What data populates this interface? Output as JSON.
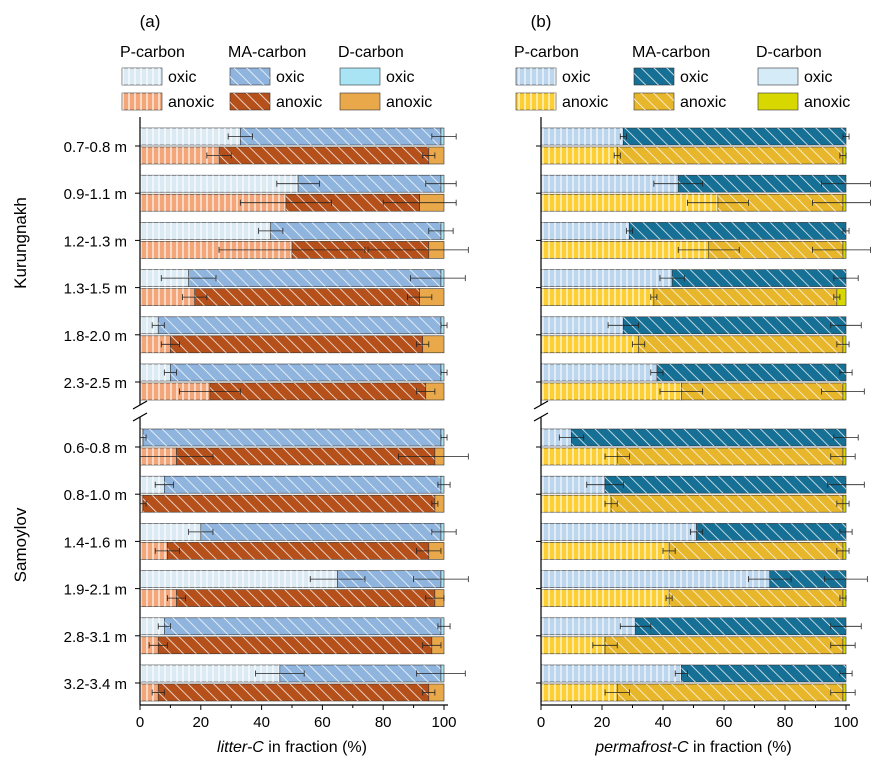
{
  "chart_data": {
    "type": "bar",
    "orientation": "horizontal",
    "stacked": true,
    "error_bars": true,
    "y_group_labels": [
      "Kurungnakh",
      "Samoylov"
    ],
    "categories": {
      "Kurungnakh": [
        "0.7-0.8 m",
        "0.9-1.1 m",
        "1.2-1.3 m",
        "1.3-1.5 m",
        "1.8-2.0 m",
        "2.3-2.5 m"
      ],
      "Samoylov": [
        "0.6-0.8 m",
        "0.8-1.0 m",
        "1.4-1.6 m",
        "1.9-2.1 m",
        "2.8-3.1 m",
        "3.2-3.4 m"
      ]
    },
    "xlim": [
      0,
      100
    ],
    "xticks": [
      0,
      20,
      40,
      60,
      80,
      100
    ],
    "legend_headers": [
      "P-carbon",
      "MA-carbon",
      "D-carbon"
    ],
    "legend_items": [
      "oxic",
      "anoxic"
    ],
    "panels": [
      {
        "label": "(a)",
        "xlabel": "litter-C",
        "xlabel_suffix": " in fraction (%)",
        "colors": {
          "P_oxic": "#dceaf3",
          "P_anoxic": "#f2a67a",
          "MA_oxic": "#8fb5de",
          "MA_anoxic": "#b5501a",
          "D_oxic": "#a8e4f4",
          "D_anoxic": "#e9a94a"
        },
        "series": {
          "Kurungnakh": {
            "oxic": {
              "P": [
                33,
                52,
                43,
                16,
                6,
                10
              ],
              "MA": [
                66,
                47,
                56,
                83,
                93,
                89
              ],
              "D": [
                1,
                1,
                1,
                1,
                1,
                1
              ],
              "err": [
                [
                  33,
                  4,
                  100,
                  4
                ],
                [
                  52,
                  7,
                  99,
                  5
                ],
                [
                  43,
                  4,
                  99,
                  4
                ],
                [
                  16,
                  9,
                  98,
                  9
                ],
                [
                  6,
                  2,
                  100,
                  1
                ],
                [
                  10,
                  2,
                  100,
                  1
                ]
              ]
            },
            "anoxic": {
              "P": [
                26,
                48,
                50,
                18,
                10,
                23
              ],
              "MA": [
                69,
                44,
                45,
                74,
                83,
                71
              ],
              "D": [
                5,
                8,
                5,
                8,
                7,
                6
              ],
              "err": [
                [
                  26,
                  4,
                  95,
                  2
                ],
                [
                  48,
                  15,
                  92,
                  12
                ],
                [
                  50,
                  24,
                  95,
                  20
                ],
                [
                  18,
                  4,
                  92,
                  4
                ],
                [
                  10,
                  3,
                  93,
                  2
                ],
                [
                  23,
                  10,
                  94,
                  3
                ]
              ]
            }
          },
          "Samoylov": {
            "oxic": {
              "P": [
                1,
                8,
                20,
                65,
                8,
                46
              ],
              "MA": [
                98,
                91,
                79,
                34,
                91,
                53
              ],
              "D": [
                1,
                1,
                1,
                1,
                1,
                1
              ],
              "err": [
                [
                  1,
                  1,
                  100,
                  1
                ],
                [
                  8,
                  3,
                  100,
                  2
                ],
                [
                  20,
                  4,
                  100,
                  4
                ],
                [
                  65,
                  9,
                  99,
                  9
                ],
                [
                  8,
                  2,
                  100,
                  2
                ],
                [
                  46,
                  8,
                  99,
                  8
                ]
              ]
            },
            "anoxic": {
              "P": [
                12,
                1,
                9,
                12,
                6,
                6
              ],
              "MA": [
                85,
                96,
                86,
                85,
                90,
                89
              ],
              "D": [
                3,
                3,
                5,
                3,
                4,
                5
              ],
              "err": [
                [
                  12,
                  12,
                  97,
                  12
                ],
                [
                  1,
                  1,
                  97,
                  1
                ],
                [
                  9,
                  4,
                  95,
                  4
                ],
                [
                  12,
                  3,
                  97,
                  3
                ],
                [
                  6,
                  3,
                  96,
                  3
                ],
                [
                  6,
                  2,
                  95,
                  2
                ]
              ]
            }
          }
        }
      },
      {
        "label": "(b)",
        "xlabel": "permafrost-C",
        "xlabel_suffix": " in fraction (%)",
        "colors": {
          "P_oxic": "#bcd6ee",
          "P_anoxic": "#fccf35",
          "MA_oxic": "#166f94",
          "MA_anoxic": "#e8b62a",
          "D_oxic": "#d6ebf8",
          "D_anoxic": "#d8d800"
        },
        "series": {
          "Kurungnakh": {
            "oxic": {
              "P": [
                27,
                45,
                29,
                43,
                27,
                38
              ],
              "MA": [
                73,
                55,
                71,
                57,
                73,
                62
              ],
              "D": [
                0,
                0,
                0,
                0,
                0,
                0
              ],
              "err": [
                [
                  27,
                  1,
                  100,
                  1
                ],
                [
                  45,
                  8,
                  100,
                  8
                ],
                [
                  29,
                  1,
                  100,
                  1
                ],
                [
                  43,
                  4,
                  100,
                  4
                ],
                [
                  27,
                  5,
                  100,
                  5
                ],
                [
                  38,
                  2,
                  100,
                  2
                ]
              ]
            },
            "anoxic": {
              "P": [
                25,
                58,
                55,
                37,
                32,
                46
              ],
              "MA": [
                74,
                41,
                44,
                60,
                67,
                53
              ],
              "D": [
                1,
                1,
                1,
                3,
                1,
                1
              ],
              "err": [
                [
                  25,
                  1,
                  99,
                  1
                ],
                [
                  58,
                  10,
                  99,
                  10
                ],
                [
                  55,
                  10,
                  99,
                  10
                ],
                [
                  37,
                  1,
                  97,
                  1
                ],
                [
                  32,
                  2,
                  99,
                  2
                ],
                [
                  46,
                  7,
                  99,
                  7
                ]
              ]
            }
          },
          "Samoylov": {
            "oxic": {
              "P": [
                10,
                21,
                51,
                75,
                31,
                46
              ],
              "MA": [
                90,
                79,
                49,
                25,
                69,
                54
              ],
              "D": [
                0,
                0,
                0,
                0,
                0,
                0
              ],
              "err": [
                [
                  10,
                  4,
                  100,
                  4
                ],
                [
                  21,
                  6,
                  100,
                  6
                ],
                [
                  51,
                  2,
                  100,
                  2
                ],
                [
                  75,
                  7,
                  100,
                  7
                ],
                [
                  31,
                  5,
                  100,
                  5
                ],
                [
                  46,
                  2,
                  100,
                  2
                ]
              ]
            },
            "anoxic": {
              "P": [
                25,
                23,
                42,
                42,
                21,
                25
              ],
              "MA": [
                74,
                76,
                57,
                57,
                78,
                74
              ],
              "D": [
                1,
                1,
                1,
                1,
                1,
                1
              ],
              "err": [
                [
                  25,
                  4,
                  99,
                  4
                ],
                [
                  23,
                  2,
                  99,
                  2
                ],
                [
                  42,
                  2,
                  99,
                  2
                ],
                [
                  42,
                  1,
                  99,
                  1
                ],
                [
                  21,
                  4,
                  99,
                  4
                ],
                [
                  25,
                  4,
                  99,
                  4
                ]
              ]
            }
          }
        }
      }
    ]
  }
}
